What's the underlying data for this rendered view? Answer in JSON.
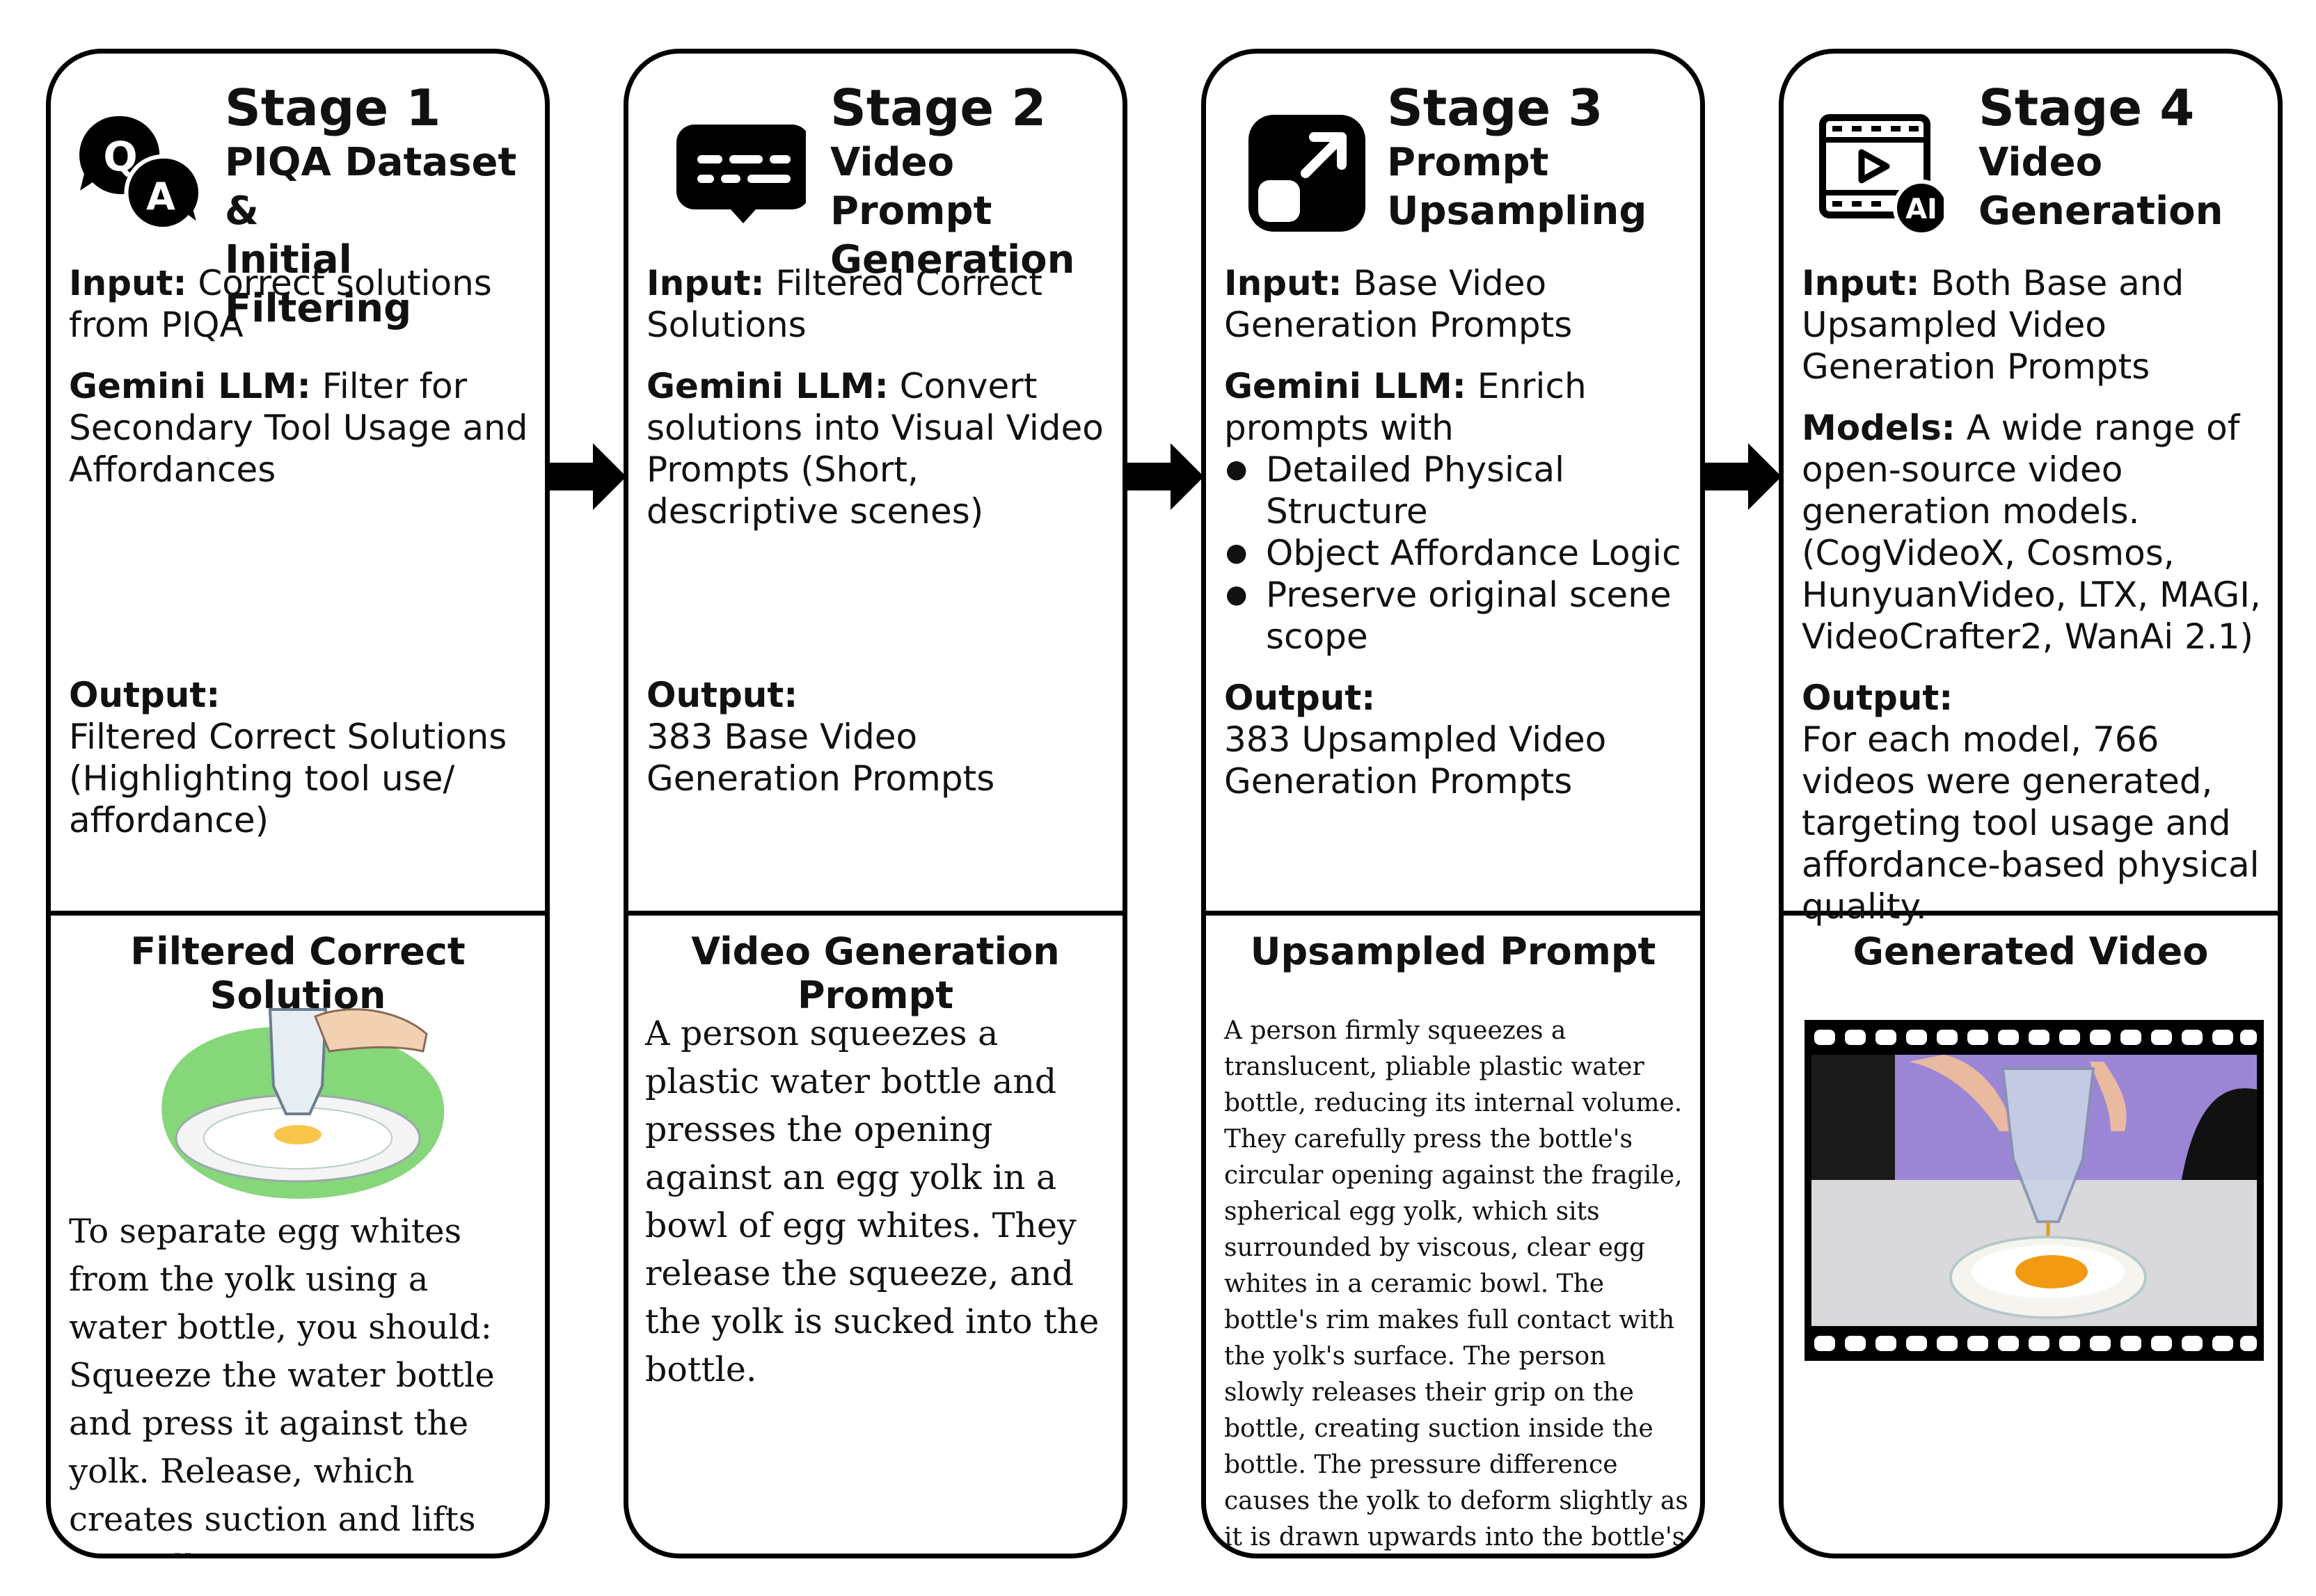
{
  "stages": [
    {
      "stage": "Stage 1",
      "title_lines": [
        "PIQA Dataset &",
        "Initial Filtering"
      ],
      "icon": "qa-chat-icon",
      "input_label": "Input:",
      "input_text": "Correct solutions from PIQA",
      "llm_label": "Gemini LLM:",
      "llm_text": "Filter for Secondary Tool Usage and Affordances",
      "output_label": "Output:",
      "output_text": "Filtered Correct Solutions (Highlighting tool use/ affordance)",
      "bottom_title": "Filtered Correct Solution",
      "bottom_text": "To separate egg whites from the yolk using a water bottle, you should:  Squeeze the water bottle and press it against the yolk. Release, which creates suction and lifts the yolk."
    },
    {
      "stage": "Stage 2",
      "title_lines": [
        "Video Prompt",
        "Generation"
      ],
      "icon": "chat-prompt-icon",
      "input_label": "Input:",
      "input_text": "Filtered Correct Solutions",
      "llm_label": "Gemini LLM:",
      "llm_text": "Convert solutions into Visual Video Prompts (Short, descriptive scenes)",
      "output_label": "Output:",
      "output_text": "383 Base Video Generation Prompts",
      "bottom_title": "Video Generation Prompt",
      "bottom_text": "A person squeezes a plastic water bottle and presses the opening against an egg yolk in a bowl of egg whites. They release the squeeze, and the yolk is sucked into the bottle."
    },
    {
      "stage": "Stage 3",
      "title_lines": [
        "Prompt",
        "Upsampling"
      ],
      "icon": "upscale-icon",
      "input_label": "Input:",
      "input_text": "Base Video Generation Prompts",
      "llm_label": "Gemini LLM:",
      "llm_text": "Enrich prompts with",
      "bullets": [
        "Detailed Physical Structure",
        "Object Affordance Logic",
        "Preserve original scene scope"
      ],
      "output_label": "Output:",
      "output_text": "383 Upsampled Video Generation Prompts",
      "bottom_title": "Upsampled Prompt",
      "bottom_text": "A person firmly squeezes a translucent, pliable plastic water bottle, reducing its internal volume. They carefully press the bottle's circular opening against the fragile, spherical egg yolk, which sits surrounded by viscous, clear egg whites in a ceramic bowl. The bottle's rim makes full contact with the yolk's surface. The person slowly releases their grip on the bottle, creating suction inside the bottle. The pressure difference causes the yolk to deform slightly as it is drawn upwards into the bottle's opening."
    },
    {
      "stage": "Stage 4",
      "title_lines": [
        "Video",
        "Generation"
      ],
      "icon": "ai-video-icon",
      "input_label": "Input:",
      "input_text": "Both Base and Upsampled Video Generation Prompts",
      "models_label": "Models:",
      "models_text": "A wide range of open-source video generation models. (CogVideoX, Cosmos, HunyuanVideo, LTX, MAGI, VideoCrafter2, WanAi 2.1)",
      "output_label": "Output:",
      "output_text": "For each model, 766 videos were generated, targeting tool usage and affordance-based physical quality.",
      "bottom_title": "Generated Video"
    }
  ],
  "ai_badge": "AI"
}
